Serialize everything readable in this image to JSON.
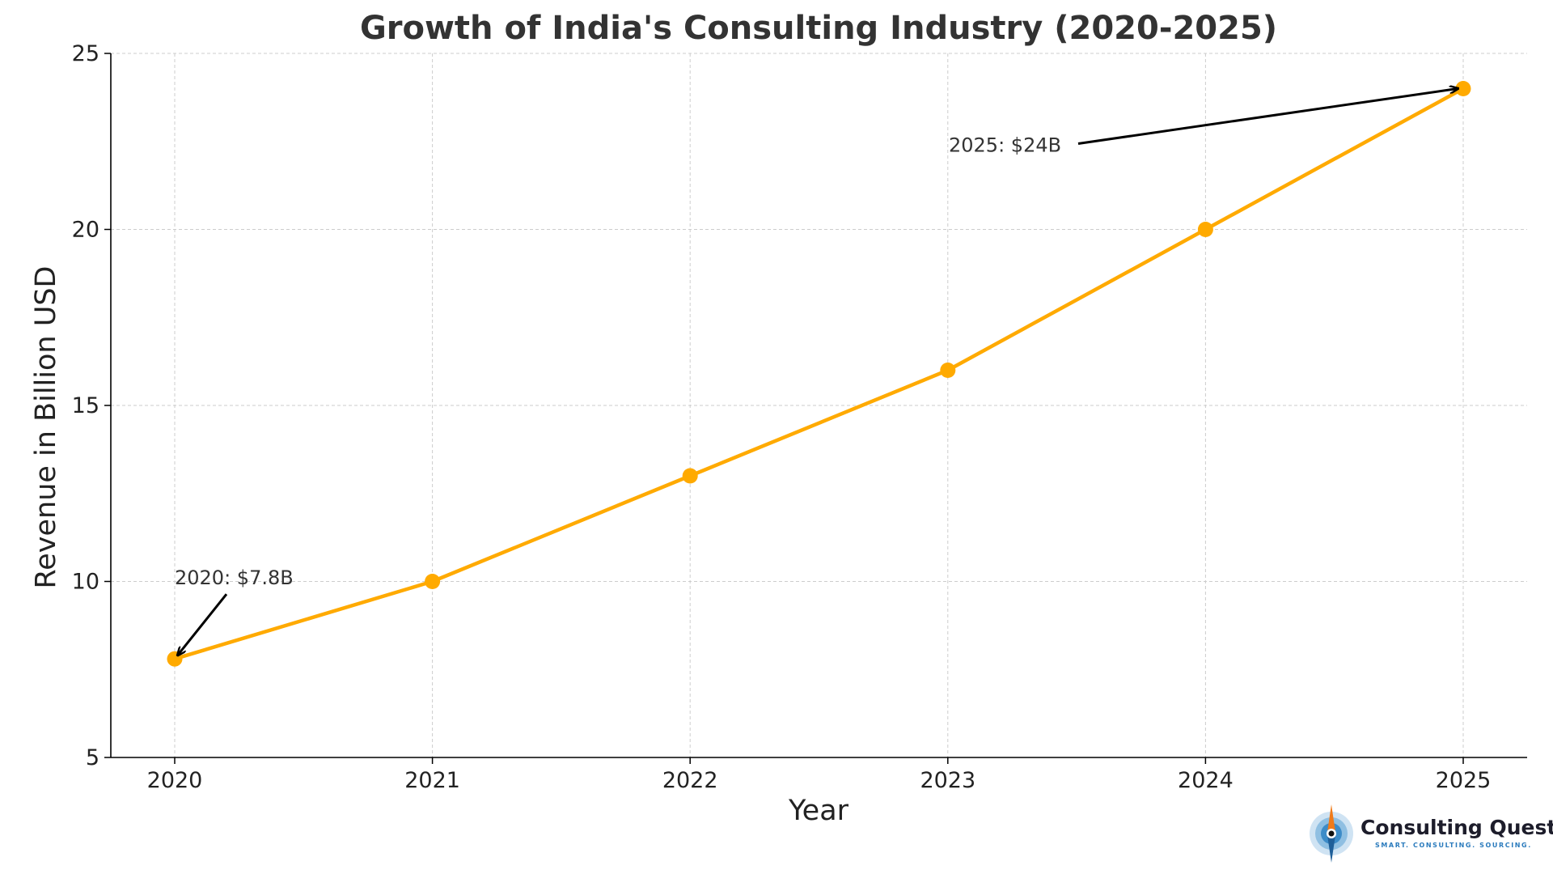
{
  "chart_data": {
    "type": "line",
    "title": "Growth of India's Consulting Industry (2020-2025)",
    "xlabel": "Year",
    "ylabel": "Revenue in Billion USD",
    "categories": [
      "2020",
      "2021",
      "2022",
      "2023",
      "2024",
      "2025"
    ],
    "values": [
      7.8,
      10,
      13,
      16,
      20,
      24
    ],
    "ylim": [
      5,
      25
    ],
    "yticks": [
      5,
      10,
      15,
      20,
      25
    ],
    "grid": true,
    "line_color": "#FFAA00",
    "annotations": [
      {
        "text": "2020: $7.8B",
        "target_index": 0
      },
      {
        "text": "2025: $24B",
        "target_index": 5
      }
    ]
  },
  "logo": {
    "name": "Consulting Quest",
    "tagline": "SMART. CONSULTING. SOURCING.",
    "colors": {
      "blue": "#2b7bbd",
      "orange": "#f07b1a",
      "light_blue": "#a9cde8"
    }
  }
}
